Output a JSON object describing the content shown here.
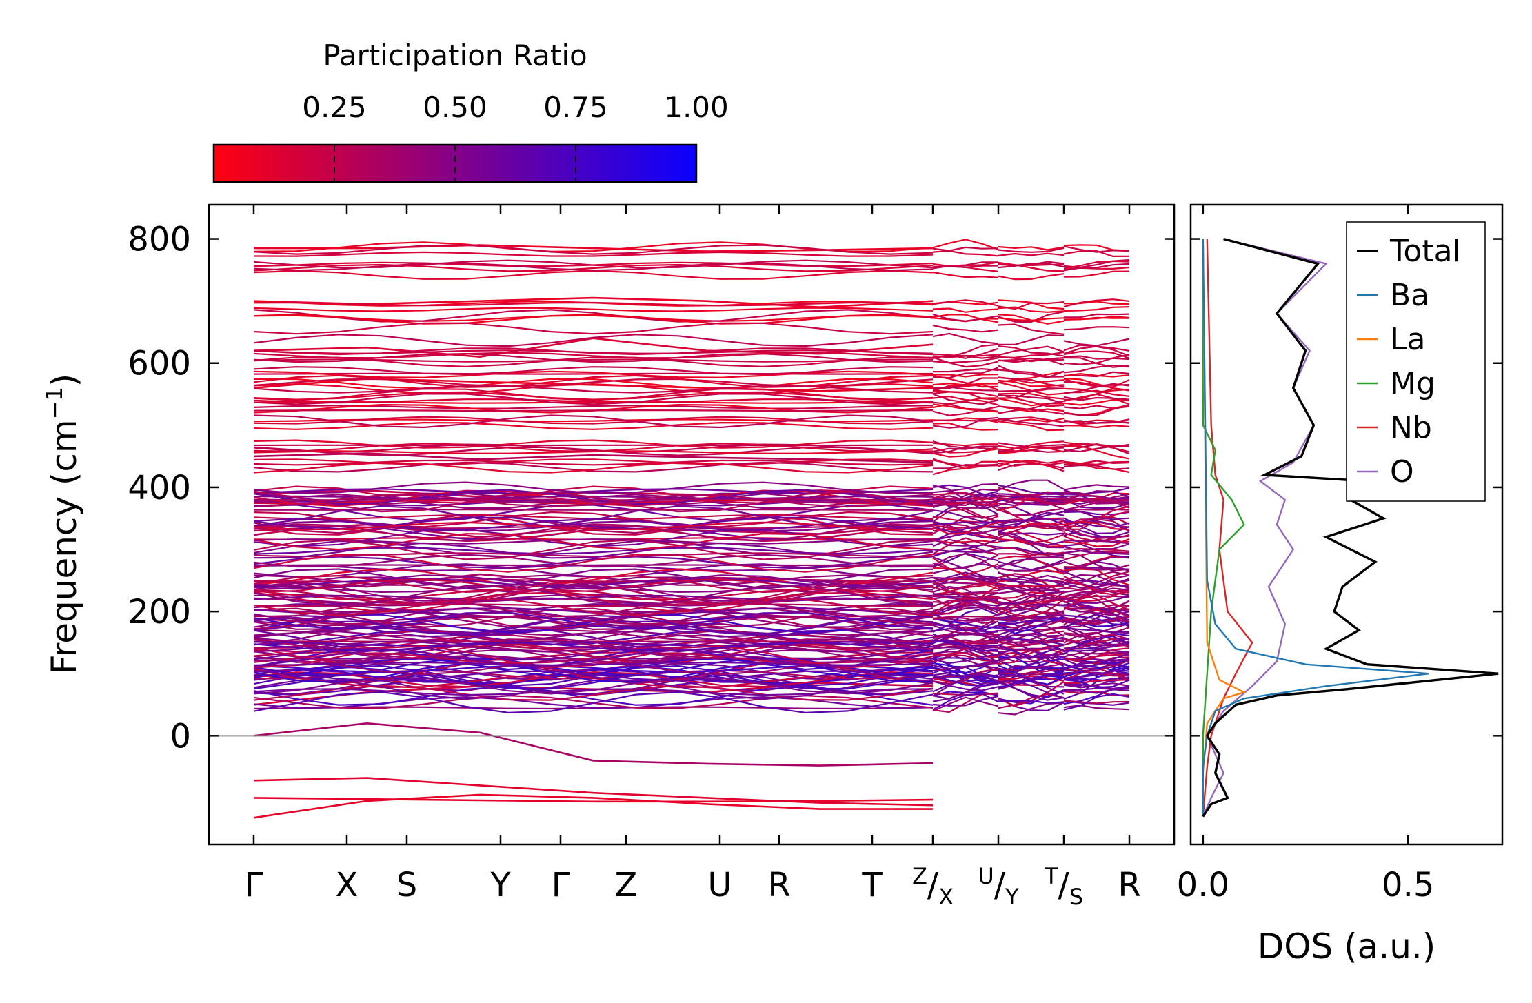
{
  "chart_data": [
    {
      "type": "line",
      "title": "",
      "ylabel_main": "Frequency (cm",
      "ylabel_sup": "−1",
      "ylabel_close": ")",
      "ylim": [
        -175,
        855
      ],
      "yticks": [
        0,
        200,
        400,
        600,
        800
      ],
      "ytick_labels": [
        "0",
        "200",
        "400",
        "600",
        "800"
      ],
      "path_labels": [
        "Γ",
        "X",
        "S",
        "Y",
        "Γ",
        "Z",
        "U",
        "R",
        "T",
        "Z",
        "X",
        "U",
        "Y",
        "T",
        "S",
        "R"
      ],
      "x_ticks": [
        {
          "label": "Γ"
        },
        {
          "label": "X"
        },
        {
          "label": "S"
        },
        {
          "label": "Y"
        },
        {
          "label": "Γ"
        },
        {
          "label": "Z"
        },
        {
          "label": "U"
        },
        {
          "label": "R"
        },
        {
          "label": "T"
        },
        {
          "pre": "Z",
          "post": "X"
        },
        {
          "pre": "U",
          "post": "Y"
        },
        {
          "pre": "T",
          "post": "S"
        },
        {
          "label": "R"
        }
      ],
      "colorbar": {
        "title": "Participation Ratio",
        "range": [
          0.0,
          1.0
        ],
        "ticks": [
          0.25,
          0.5,
          0.75,
          1.0
        ],
        "tick_labels": [
          "0.25",
          "0.50",
          "0.75",
          "1.00"
        ],
        "low_color": "#ff0010",
        "high_color": "#0a00ff"
      },
      "band_colors": {
        "low": "#e8102a",
        "mid": "#a01a6a",
        "high": "#2a18e0"
      },
      "representative_bands": [
        {
          "y": [
            -132,
            -105,
            -95,
            -100,
            -110,
            -118,
            -118
          ],
          "pr": 0.1
        },
        {
          "y": [
            -100,
            -102,
            -104,
            -106,
            -106,
            -105,
            -103
          ],
          "pr": 0.1
        },
        {
          "y": [
            -72,
            -68,
            -80,
            -92,
            -100,
            -108,
            -112
          ],
          "pr": 0.12
        },
        {
          "y": [
            0,
            20,
            5,
            -40,
            -45,
            -48,
            -44
          ],
          "pr": 0.35
        },
        {
          "y": [
            50,
            70,
            80,
            75,
            70,
            85,
            80
          ],
          "pr": 0.2
        },
        {
          "y": [
            110,
            120,
            130,
            115,
            125,
            118,
            120
          ],
          "pr": 0.45
        },
        {
          "y": [
            160,
            175,
            165,
            180,
            170,
            160,
            150
          ],
          "pr": 0.55
        },
        {
          "y": [
            250,
            240,
            260,
            245,
            255,
            250,
            240
          ],
          "pr": 0.35
        },
        {
          "y": [
            330,
            340,
            320,
            335,
            330,
            325,
            340
          ],
          "pr": 0.3
        },
        {
          "y": [
            390,
            395,
            385,
            392,
            388,
            395,
            390
          ],
          "pr": 0.25
        },
        {
          "y": [
            450,
            455,
            445,
            452,
            448,
            445,
            440
          ],
          "pr": 0.3
        },
        {
          "y": [
            560,
            575,
            570,
            565,
            560,
            555,
            560
          ],
          "pr": 0.1
        },
        {
          "y": [
            620,
            625,
            610,
            640,
            620,
            615,
            630
          ],
          "pr": 0.15
        },
        {
          "y": [
            700,
            695,
            700,
            705,
            700,
            690,
            700
          ],
          "pr": 0.1
        },
        {
          "y": [
            785,
            785,
            790,
            785,
            780,
            782,
            785
          ],
          "pr": 0.1
        }
      ],
      "zero_line": 0
    },
    {
      "type": "line",
      "xlabel": "DOS (a.u.)",
      "xlim": [
        -0.03,
        0.73
      ],
      "xticks": [
        0.0,
        0.5
      ],
      "xtick_labels": [
        "0.0",
        "0.5"
      ],
      "ylim": [
        -175,
        855
      ],
      "legend_position": "top-right",
      "series": [
        {
          "name": "Total",
          "color": "#000000",
          "points": [
            [
              0.0,
              -130
            ],
            [
              0.02,
              -110
            ],
            [
              0.06,
              -100
            ],
            [
              0.03,
              -60
            ],
            [
              0.04,
              -30
            ],
            [
              0.01,
              0
            ],
            [
              0.03,
              20
            ],
            [
              0.08,
              50
            ],
            [
              0.18,
              65
            ],
            [
              0.35,
              75
            ],
            [
              0.5,
              85
            ],
            [
              0.72,
              100
            ],
            [
              0.4,
              115
            ],
            [
              0.3,
              140
            ],
            [
              0.38,
              170
            ],
            [
              0.32,
              200
            ],
            [
              0.34,
              240
            ],
            [
              0.42,
              280
            ],
            [
              0.3,
              320
            ],
            [
              0.44,
              350
            ],
            [
              0.36,
              380
            ],
            [
              0.4,
              410
            ],
            [
              0.15,
              420
            ],
            [
              0.24,
              450
            ],
            [
              0.27,
              500
            ],
            [
              0.22,
              560
            ],
            [
              0.25,
              620
            ],
            [
              0.18,
              680
            ],
            [
              0.28,
              760
            ],
            [
              0.05,
              800
            ]
          ]
        },
        {
          "name": "Ba",
          "color": "#1f77b4",
          "points": [
            [
              0.0,
              -130
            ],
            [
              0.0,
              -50
            ],
            [
              0.01,
              0
            ],
            [
              0.03,
              40
            ],
            [
              0.1,
              60
            ],
            [
              0.3,
              80
            ],
            [
              0.55,
              100
            ],
            [
              0.25,
              115
            ],
            [
              0.08,
              140
            ],
            [
              0.03,
              180
            ],
            [
              0.01,
              250
            ],
            [
              0.0,
              800
            ]
          ]
        },
        {
          "name": "La",
          "color": "#ff7f0e",
          "points": [
            [
              0.0,
              -130
            ],
            [
              0.0,
              -60
            ],
            [
              0.01,
              20
            ],
            [
              0.05,
              60
            ],
            [
              0.1,
              70
            ],
            [
              0.04,
              90
            ],
            [
              0.01,
              150
            ],
            [
              0.0,
              800
            ]
          ]
        },
        {
          "name": "Mg",
          "color": "#2ca02c",
          "points": [
            [
              0.0,
              -130
            ],
            [
              0.0,
              0
            ],
            [
              0.01,
              100
            ],
            [
              0.02,
              200
            ],
            [
              0.04,
              300
            ],
            [
              0.1,
              340
            ],
            [
              0.07,
              380
            ],
            [
              0.02,
              420
            ],
            [
              0.03,
              460
            ],
            [
              0.0,
              500
            ],
            [
              0.0,
              800
            ]
          ]
        },
        {
          "name": "Nb",
          "color": "#d62728",
          "points": [
            [
              0.0,
              -130
            ],
            [
              0.01,
              -50
            ],
            [
              0.02,
              0
            ],
            [
              0.05,
              60
            ],
            [
              0.08,
              100
            ],
            [
              0.12,
              150
            ],
            [
              0.06,
              200
            ],
            [
              0.04,
              300
            ],
            [
              0.05,
              380
            ],
            [
              0.03,
              420
            ],
            [
              0.02,
              500
            ],
            [
              0.01,
              800
            ]
          ]
        },
        {
          "name": "O",
          "color": "#9467bd",
          "points": [
            [
              0.0,
              -130
            ],
            [
              0.02,
              -100
            ],
            [
              0.05,
              -60
            ],
            [
              0.01,
              0
            ],
            [
              0.05,
              40
            ],
            [
              0.12,
              80
            ],
            [
              0.18,
              120
            ],
            [
              0.2,
              180
            ],
            [
              0.16,
              240
            ],
            [
              0.22,
              300
            ],
            [
              0.18,
              340
            ],
            [
              0.2,
              380
            ],
            [
              0.14,
              410
            ],
            [
              0.22,
              440
            ],
            [
              0.27,
              500
            ],
            [
              0.22,
              560
            ],
            [
              0.26,
              620
            ],
            [
              0.18,
              680
            ],
            [
              0.3,
              760
            ],
            [
              0.05,
              800
            ]
          ]
        }
      ]
    }
  ]
}
